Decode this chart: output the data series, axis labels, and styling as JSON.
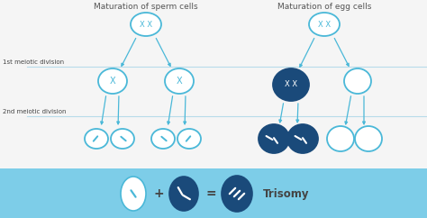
{
  "title_left": "Maturation of sperm cells",
  "title_right": "Maturation of egg cells",
  "label_1st": "1st meiotic division",
  "label_2nd": "2nd meiotic division",
  "trisomy_label": "Trisomy",
  "bg_color": "#f5f5f5",
  "cell_outline_color": "#4ab8d8",
  "cell_dark_color": "#1a4a7a",
  "arrow_color": "#4ab8d8",
  "line_color": "#b8dcea",
  "text_color": "#444444",
  "title_color": "#555555",
  "bottom_bg_color": "#7dcde8",
  "label_color": "#444444",
  "xlabel_color": "#2e86ab"
}
